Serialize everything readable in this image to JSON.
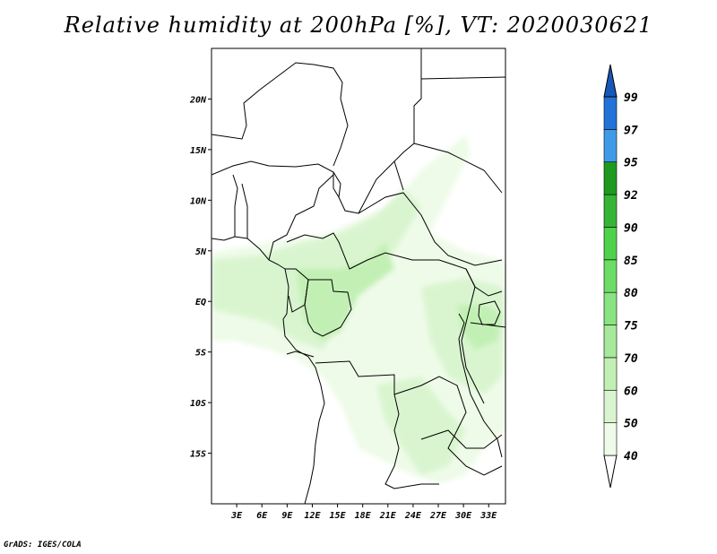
{
  "title": "Relative humidity at 200hPa [%], VT: 2020030621",
  "credit": "GrADS: IGES/COLA",
  "map": {
    "lon_range": [
      0,
      35
    ],
    "lat_range": [
      -20,
      25
    ],
    "lon_ticks": [
      "3E",
      "6E",
      "9E",
      "12E",
      "15E",
      "18E",
      "21E",
      "24E",
      "27E",
      "30E",
      "33E"
    ],
    "lat_ticks": [
      "20N",
      "15N",
      "10N",
      "5N",
      "EQ",
      "5S",
      "10S",
      "15S"
    ]
  },
  "colorbar": {
    "levels": [
      "40",
      "50",
      "60",
      "70",
      "75",
      "80",
      "85",
      "90",
      "92",
      "95",
      "97",
      "99"
    ],
    "colors": [
      "#ffffff",
      "#eefbe8",
      "#d9f5cf",
      "#c2f0b4",
      "#a6e99a",
      "#8ae381",
      "#6ddc66",
      "#4fd24b",
      "#36b436",
      "#1f9a1f",
      "#3f9be8",
      "#2272d8",
      "#1757b8"
    ]
  }
}
